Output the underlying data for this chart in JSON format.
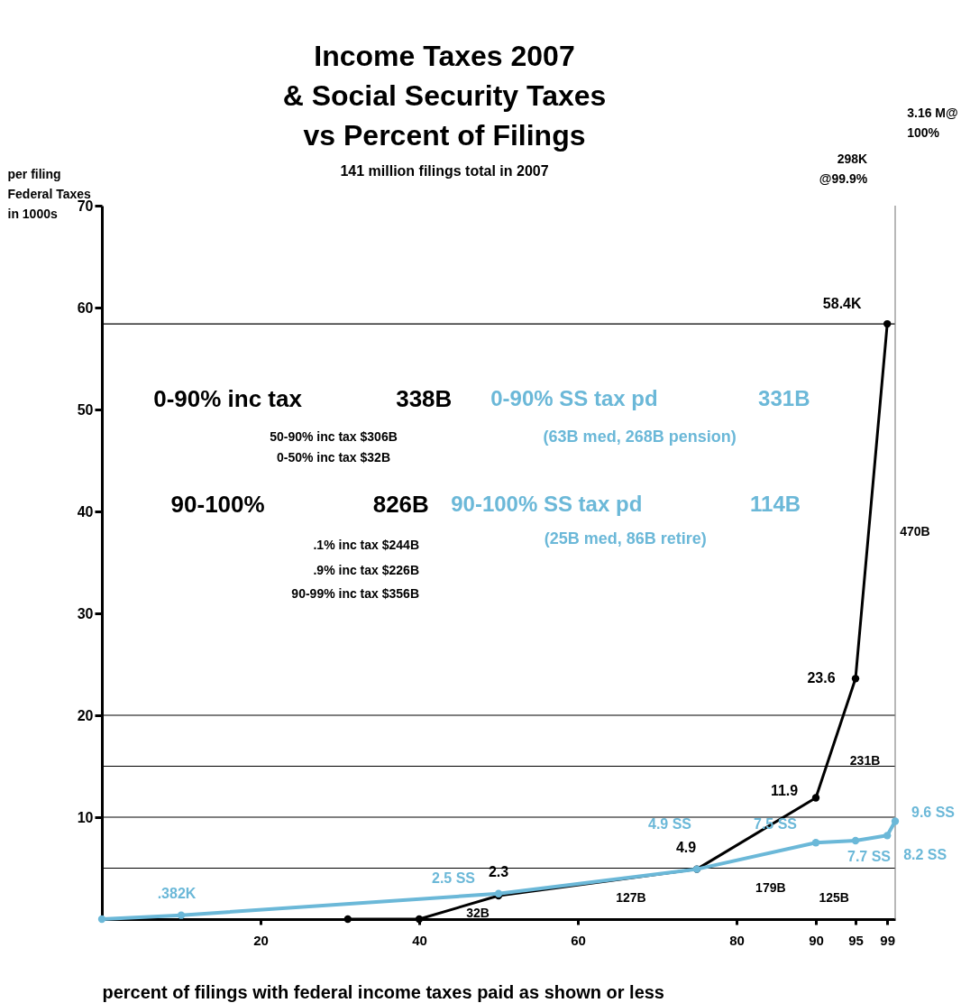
{
  "chart_data": {
    "type": "line",
    "title": "Income Taxes 2007\n& Social Security Taxes\nvs Percent of Filings",
    "subtitle": "141 million filings total in 2007",
    "xlabel": "percent of  filings with federal income taxes paid as shown or less",
    "ylabel": "per filing\nFederal Taxes\nin 1000s",
    "xlim": [
      0,
      100
    ],
    "ylim": [
      0,
      70
    ],
    "xticks": [
      20,
      40,
      60,
      80,
      90,
      95,
      99
    ],
    "yticks": [
      10,
      20,
      30,
      40,
      50,
      60,
      70
    ],
    "marker": "circle",
    "line_style": "solid",
    "series": [
      {
        "color": "#000000",
        "x": [
          31,
          40,
          50,
          75,
          90,
          95,
          99
        ],
        "values": [
          0,
          0,
          2.3,
          4.9,
          11.9,
          23.6,
          58.4
        ],
        "value_labels": [
          null,
          null,
          "2.3",
          "4.9",
          "11.9",
          "23.6",
          "58.4K"
        ]
      },
      {
        "color": "#6bb8d8",
        "x": [
          0,
          10,
          50,
          75,
          90,
          95,
          99,
          100
        ],
        "values": [
          0,
          0.382,
          2.5,
          4.9,
          7.5,
          7.7,
          8.2,
          9.6
        ],
        "value_labels": [
          null,
          ".382K",
          "2.5  SS",
          "4.9 SS",
          "7.5 SS",
          "7.7 SS",
          "8.2 SS",
          "9.6 SS"
        ]
      }
    ],
    "ref_lines": [
      {
        "axis": "y",
        "value": 5,
        "color": "#000000"
      },
      {
        "axis": "y",
        "value": 10,
        "color": "#000000"
      },
      {
        "axis": "y",
        "value": 15,
        "color": "#000000"
      },
      {
        "axis": "y",
        "value": 20,
        "color": "#000000"
      },
      {
        "axis": "y",
        "value": 58.4,
        "color": "#000000"
      },
      {
        "axis": "x",
        "value": 100,
        "color": "#888888"
      }
    ],
    "annotations": [
      "0-90% inc tax",
      "338B",
      "0-90% SS tax pd",
      "331B",
      "(63B med, 268B pension)",
      "50-90% inc tax $306B",
      "0-50% inc tax $32B",
      "90-100%",
      "826B",
      "90-100% SS tax pd",
      "114B",
      "(25B med,  86B retire)",
      ".1% inc tax $244B",
      ".9% inc tax $226B",
      "90-99% inc tax $356B",
      "298K\n@99.9%",
      "3.16 M@\n100%",
      "470B",
      "32B",
      "127B",
      "179B",
      "125B",
      "231B"
    ]
  }
}
